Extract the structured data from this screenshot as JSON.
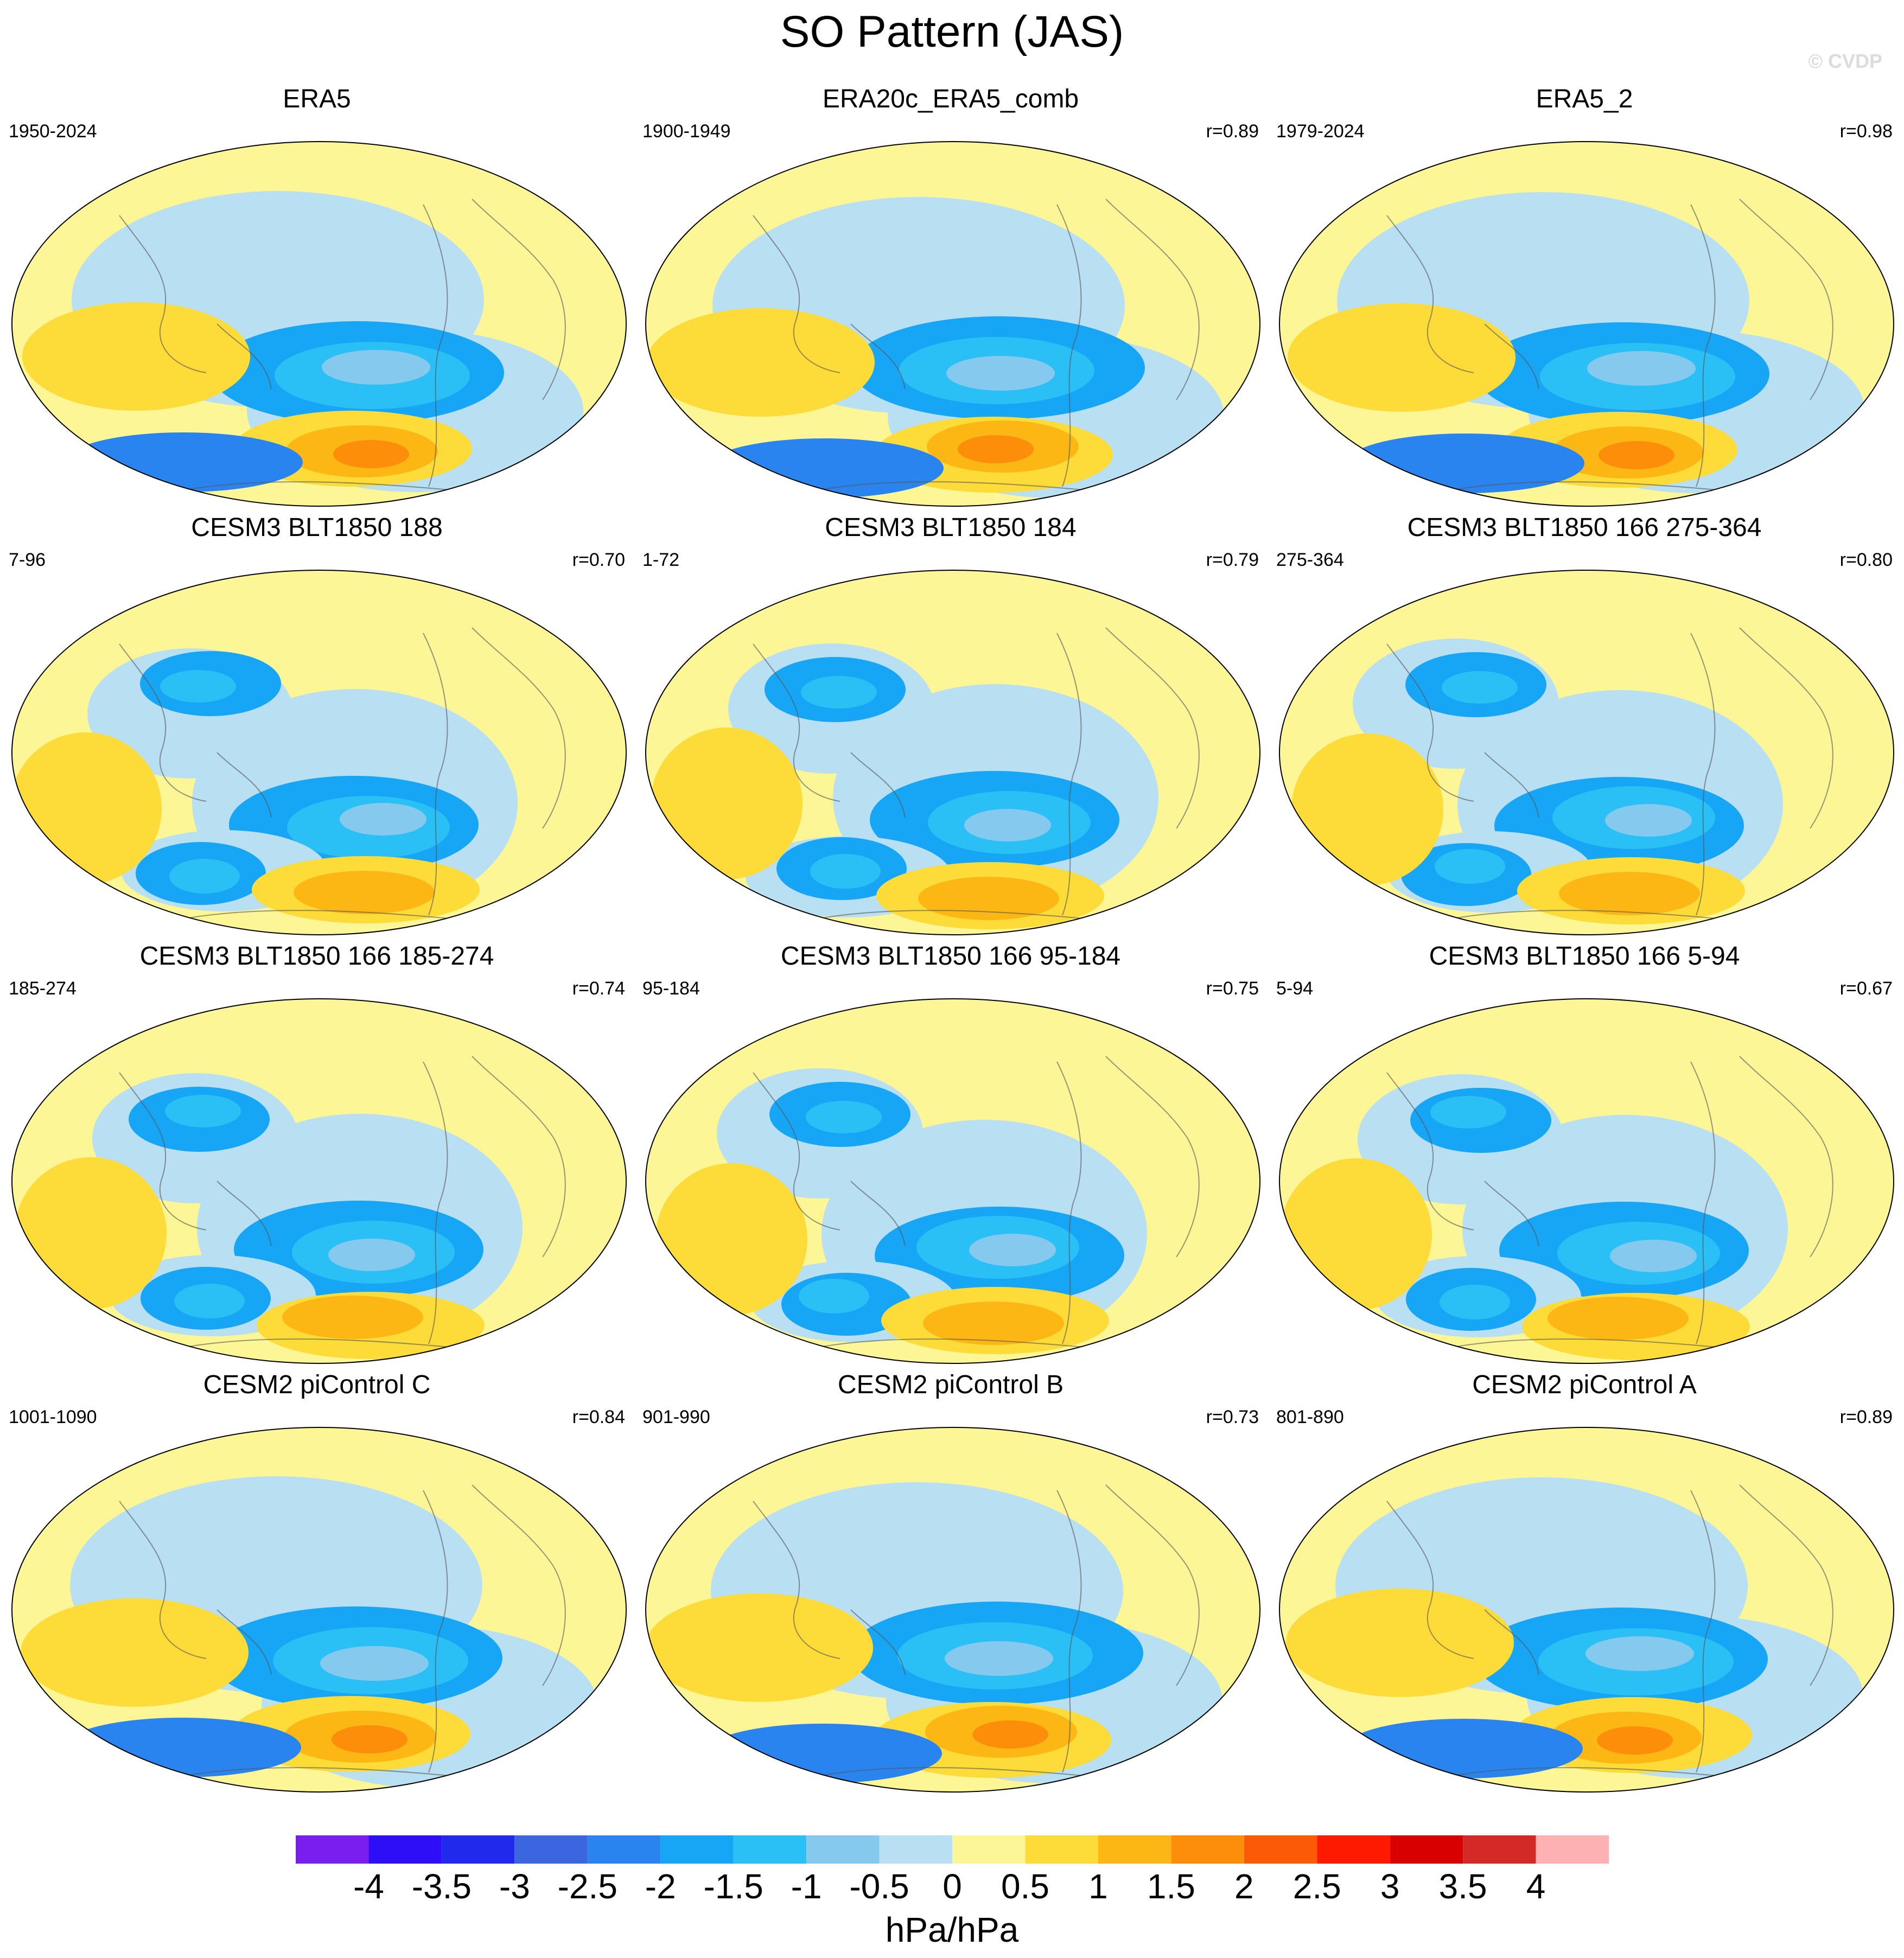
{
  "title": "SO Pattern (JAS)",
  "copyright": "© CVDP",
  "panels": [
    {
      "title": "ERA5",
      "period": "1950-2024",
      "r": ""
    },
    {
      "title": "ERA20c_ERA5_comb",
      "period": "1900-1949",
      "r": "r=0.89"
    },
    {
      "title": "ERA5_2",
      "period": "1979-2024",
      "r": "r=0.98"
    },
    {
      "title": "CESM3 BLT1850 188",
      "period": "7-96",
      "r": "r=0.70"
    },
    {
      "title": "CESM3 BLT1850 184",
      "period": "1-72",
      "r": "r=0.79"
    },
    {
      "title": "CESM3 BLT1850 166 275-364",
      "period": "275-364",
      "r": "r=0.80"
    },
    {
      "title": "CESM3 BLT1850 166 185-274",
      "period": "185-274",
      "r": "r=0.74"
    },
    {
      "title": "CESM3 BLT1850 166 95-184",
      "period": "95-184",
      "r": "r=0.75"
    },
    {
      "title": "CESM3 BLT1850 166 5-94",
      "period": "5-94",
      "r": "r=0.67"
    },
    {
      "title": "CESM2 piControl C",
      "period": "1001-1090",
      "r": "r=0.84"
    },
    {
      "title": "CESM2 piControl B",
      "period": "901-990",
      "r": "r=0.73"
    },
    {
      "title": "CESM2 piControl A",
      "period": "801-890",
      "r": "r=0.89"
    }
  ],
  "colorbar": {
    "units": "hPa/hPa",
    "ticks": [
      "-4",
      "-3.5",
      "-3",
      "-2.5",
      "-2",
      "-1.5",
      "-1",
      "-0.5",
      "0",
      "0.5",
      "1",
      "1.5",
      "2",
      "2.5",
      "3",
      "3.5",
      "4"
    ],
    "colors": [
      "#7a1ef0",
      "#2e0ef6",
      "#2029ec",
      "#3a67e0",
      "#2a84f0",
      "#17a6f5",
      "#2bc0f5",
      "#86c9ef",
      "#b8dff2",
      "#fdf697",
      "#fddc3a",
      "#fcb715",
      "#fc8e0a",
      "#fc5a06",
      "#fd1a00",
      "#d80000",
      "#d42a27",
      "#fdb1b3"
    ]
  }
}
